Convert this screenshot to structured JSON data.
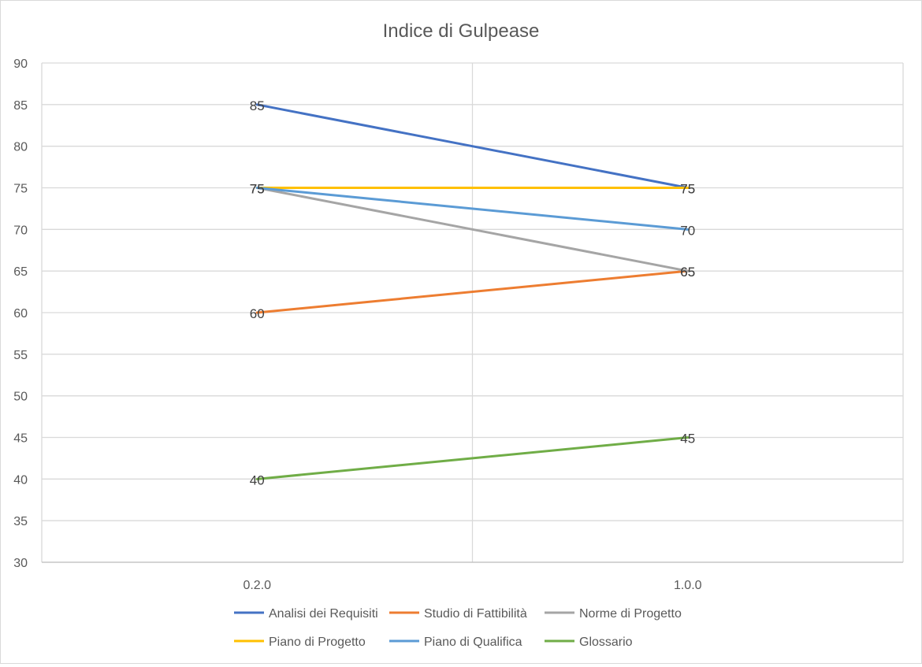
{
  "chart_data": {
    "type": "line",
    "title": "Indice di Gulpease",
    "xlabel": "",
    "ylabel": "",
    "categories": [
      "0.2.0",
      "1.0.0"
    ],
    "ylim": [
      30,
      90
    ],
    "y_ticks": [
      30,
      35,
      40,
      45,
      50,
      55,
      60,
      65,
      70,
      75,
      80,
      85,
      90
    ],
    "grid": true,
    "legend_position": "bottom",
    "data_labels": true,
    "series": [
      {
        "name": "Analisi dei Requisiti",
        "values": [
          85,
          75
        ],
        "color": "#4472c4"
      },
      {
        "name": "Studio di Fattibilità",
        "values": [
          60,
          65
        ],
        "color": "#ed7d31"
      },
      {
        "name": "Norme di Progetto",
        "values": [
          75,
          65
        ],
        "color": "#a5a5a5"
      },
      {
        "name": "Piano di Progetto",
        "values": [
          75,
          75
        ],
        "color": "#ffc000"
      },
      {
        "name": "Piano di Qualifica",
        "values": [
          75,
          70
        ],
        "color": "#5b9bd5"
      },
      {
        "name": "Glossario",
        "values": [
          40,
          45
        ],
        "color": "#70ad47"
      }
    ]
  }
}
